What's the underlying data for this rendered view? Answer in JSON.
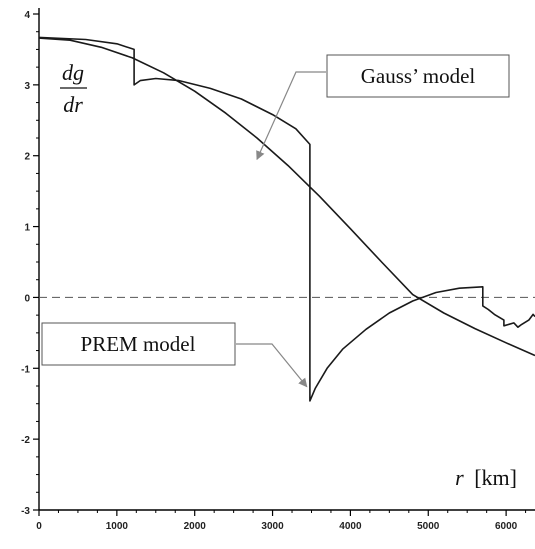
{
  "chart_data": {
    "type": "line",
    "title": "",
    "xlabel": "r [km]",
    "xlabel_var": "r",
    "xlabel_unit": "[km]",
    "ylabel": "dg/dr",
    "ylabel_num": "dg",
    "ylabel_den": "dr",
    "xlim": [
      0,
      6371
    ],
    "ylim": [
      -3,
      4
    ],
    "x_ticks": [
      0,
      1000,
      2000,
      3000,
      4000,
      5000,
      6000
    ],
    "y_ticks": [
      -3,
      -2,
      -1,
      0,
      1,
      2,
      3,
      4
    ],
    "zero_line": {
      "y": 0,
      "style": "dashed"
    },
    "series": [
      {
        "name": "Gauss’ model",
        "points": [
          [
            0,
            3.66
          ],
          [
            400,
            3.63
          ],
          [
            800,
            3.53
          ],
          [
            1200,
            3.38
          ],
          [
            1600,
            3.17
          ],
          [
            2000,
            2.91
          ],
          [
            2400,
            2.6
          ],
          [
            2800,
            2.25
          ],
          [
            3200,
            1.86
          ],
          [
            3480,
            1.56
          ],
          [
            3600,
            1.43
          ],
          [
            4000,
            0.97
          ],
          [
            4400,
            0.5
          ],
          [
            4800,
            0.04
          ],
          [
            5200,
            -0.22
          ],
          [
            5600,
            -0.44
          ],
          [
            6000,
            -0.64
          ],
          [
            6371,
            -0.82
          ]
        ]
      },
      {
        "name": "PREM model",
        "points": [
          [
            0,
            3.67
          ],
          [
            600,
            3.64
          ],
          [
            1000,
            3.58
          ],
          [
            1221,
            3.5
          ],
          [
            1221,
            3.0
          ],
          [
            1300,
            3.06
          ],
          [
            1500,
            3.09
          ],
          [
            1800,
            3.06
          ],
          [
            2200,
            2.95
          ],
          [
            2600,
            2.8
          ],
          [
            3000,
            2.58
          ],
          [
            3300,
            2.38
          ],
          [
            3480,
            2.16
          ],
          [
            3480,
            -1.46
          ],
          [
            3550,
            -1.28
          ],
          [
            3700,
            -1.0
          ],
          [
            3900,
            -0.73
          ],
          [
            4200,
            -0.45
          ],
          [
            4500,
            -0.22
          ],
          [
            4800,
            -0.05
          ],
          [
            5100,
            0.07
          ],
          [
            5400,
            0.13
          ],
          [
            5700,
            0.15
          ],
          [
            5701,
            -0.12
          ],
          [
            5771,
            -0.17
          ],
          [
            5850,
            -0.24
          ],
          [
            5971,
            -0.32
          ],
          [
            5972,
            -0.4
          ],
          [
            6100,
            -0.36
          ],
          [
            6151,
            -0.42
          ],
          [
            6200,
            -0.38
          ],
          [
            6291,
            -0.32
          ],
          [
            6346,
            -0.24
          ],
          [
            6371,
            -0.27
          ]
        ]
      }
    ],
    "annotations": [
      {
        "label": "Gauss’ model",
        "arrow_to": [
          2800,
          1.95
        ]
      },
      {
        "label": "PREM model",
        "arrow_to": [
          3440,
          -1.26
        ]
      }
    ],
    "grid": false,
    "legend": "none"
  }
}
